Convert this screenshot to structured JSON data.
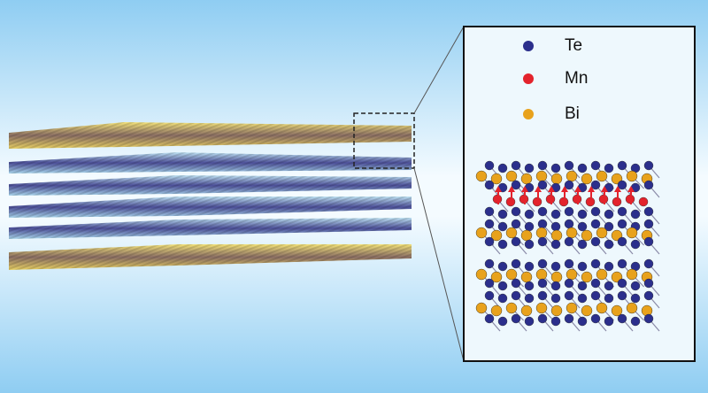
{
  "legend": [
    {
      "label": "Te",
      "color": "#2b2f8c"
    },
    {
      "label": "Mn",
      "color": "#e3232c"
    },
    {
      "label": "Bi",
      "color": "#e8a21c"
    }
  ]
}
